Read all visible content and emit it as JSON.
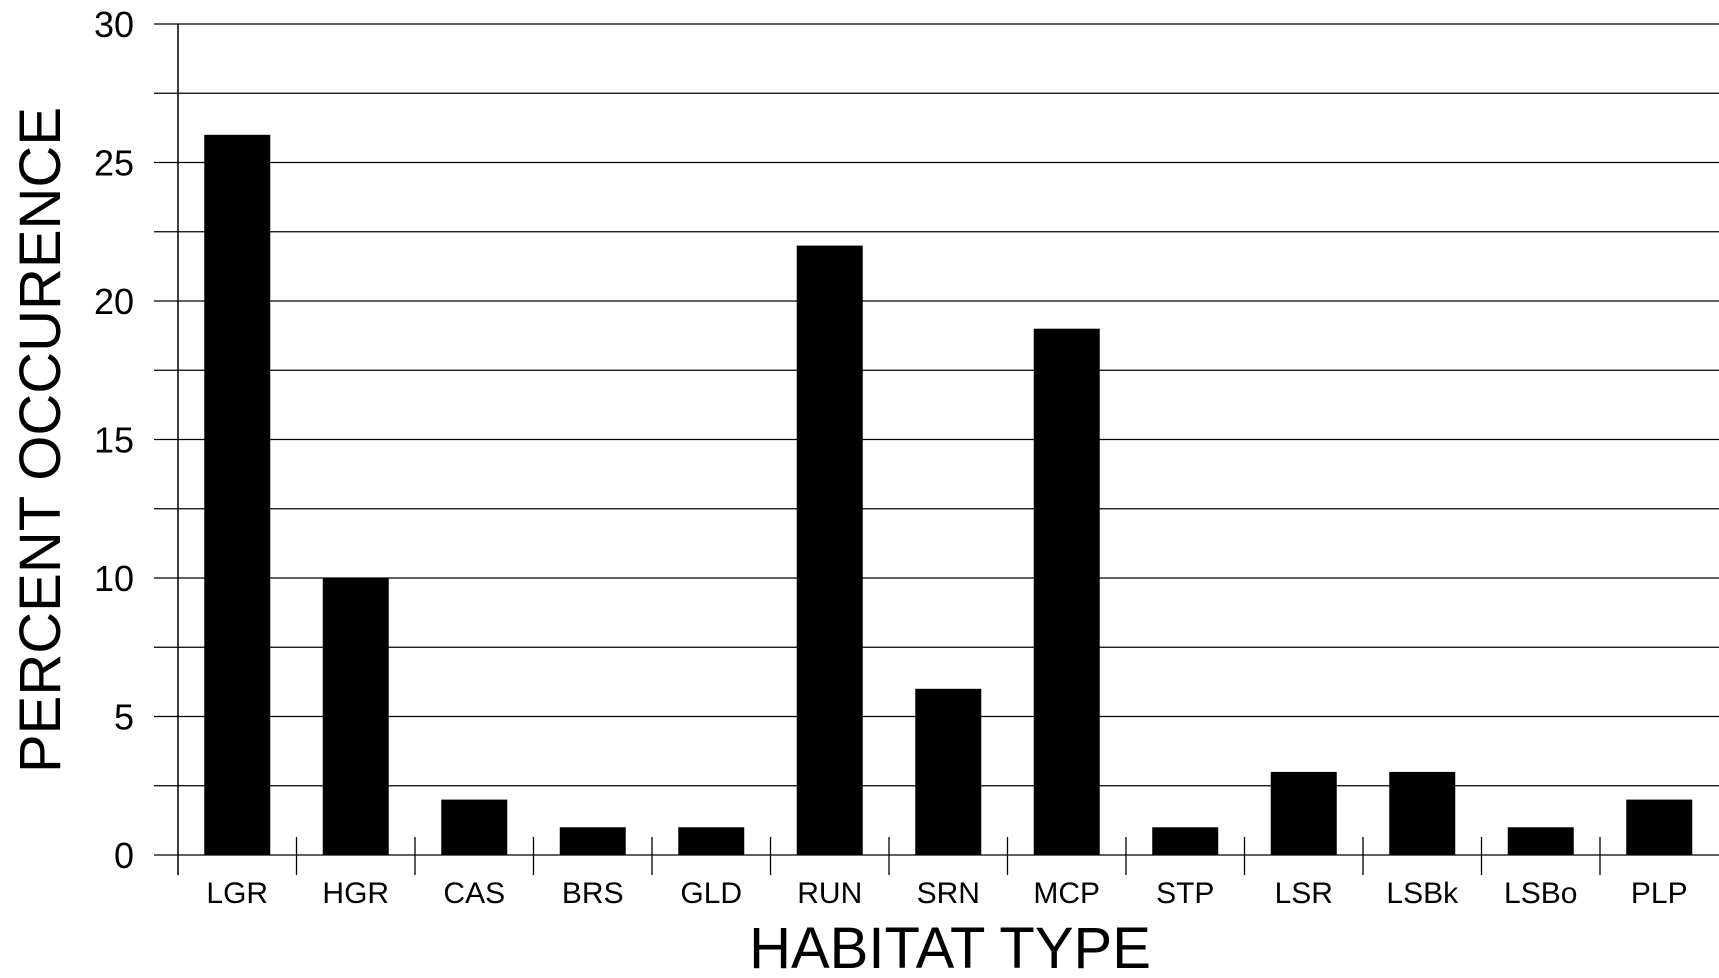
{
  "chart_data": {
    "type": "bar",
    "title": "",
    "xlabel": "HABITAT TYPE",
    "ylabel": "PERCENT OCCURENCE",
    "categories": [
      "LGR",
      "HGR",
      "CAS",
      "BRS",
      "GLD",
      "RUN",
      "SRN",
      "MCP",
      "STP",
      "LSR",
      "LSBk",
      "LSBo",
      "PLP"
    ],
    "values": [
      26,
      10,
      2,
      1,
      1,
      22,
      6,
      19,
      1,
      3,
      3,
      1,
      2
    ],
    "ylim": [
      0,
      30
    ],
    "yticks": [
      0,
      5,
      10,
      15,
      20,
      25,
      30
    ],
    "ytick_labels": [
      "0",
      "5",
      "10",
      "15",
      "20",
      "25",
      "30"
    ],
    "minor_gridlines_step": 2.5,
    "grid": true,
    "legend": "none",
    "bar_color": "#000000",
    "grid_color": "#000000"
  }
}
